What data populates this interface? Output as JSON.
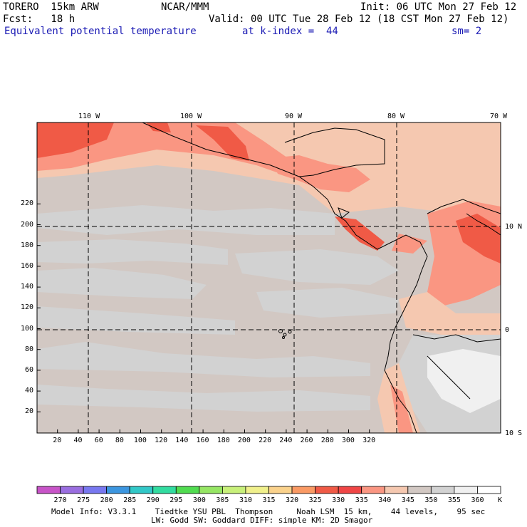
{
  "header": {
    "model_line": "TORERO  15km ARW",
    "org": "NCAR/MMM",
    "init": "Init: 06 UTC Mon 27 Feb 12",
    "fcst": "Fcst:   18 h",
    "valid": "Valid: 00 UTC Tue 28 Feb 12 (18 CST Mon 27 Feb 12)",
    "field_name": "Equivalent potential temperature",
    "level": "at k-index =  44",
    "smoothing": "sm= 2"
  },
  "map": {
    "lon_labels": [
      "110 W",
      "100 W",
      "90 W",
      "80 W",
      "70 W"
    ],
    "lat_labels": [
      "10 N",
      "0",
      "10 S"
    ],
    "y_ticks": [
      "20",
      "40",
      "60",
      "80",
      "100",
      "120",
      "140",
      "160",
      "180",
      "200",
      "220"
    ],
    "x_ticks": [
      "20",
      "40",
      "60",
      "80",
      "100",
      "120",
      "140",
      "160",
      "180",
      "200",
      "220",
      "240",
      "260",
      "280",
      "300",
      "320"
    ]
  },
  "colorbar": {
    "unit": "K",
    "levels": [
      "270",
      "275",
      "280",
      "285",
      "290",
      "295",
      "300",
      "305",
      "310",
      "315",
      "320",
      "325",
      "330",
      "335",
      "340",
      "345",
      "350",
      "355",
      "360"
    ],
    "colors": [
      "#c854c8",
      "#9a6ee0",
      "#7878f0",
      "#3c96e0",
      "#32c8c8",
      "#32dca0",
      "#50dc50",
      "#96e664",
      "#c8f07a",
      "#f0f08c",
      "#fad28c",
      "#fa9a64",
      "#f05a46",
      "#f04646",
      "#fa9682",
      "#f5c8b0",
      "#d2c8c3",
      "#d2d2d2",
      "#f0f0f0",
      "#ffffff"
    ]
  },
  "footer": {
    "line1": "Model Info: V3.3.1    Tiedtke YSU PBL  Thompson     Noah LSM  15 km,    44 levels,    95 sec",
    "line2": "LW: Godd SW: Goddard DIFF: simple KM: 2D Smagor"
  }
}
